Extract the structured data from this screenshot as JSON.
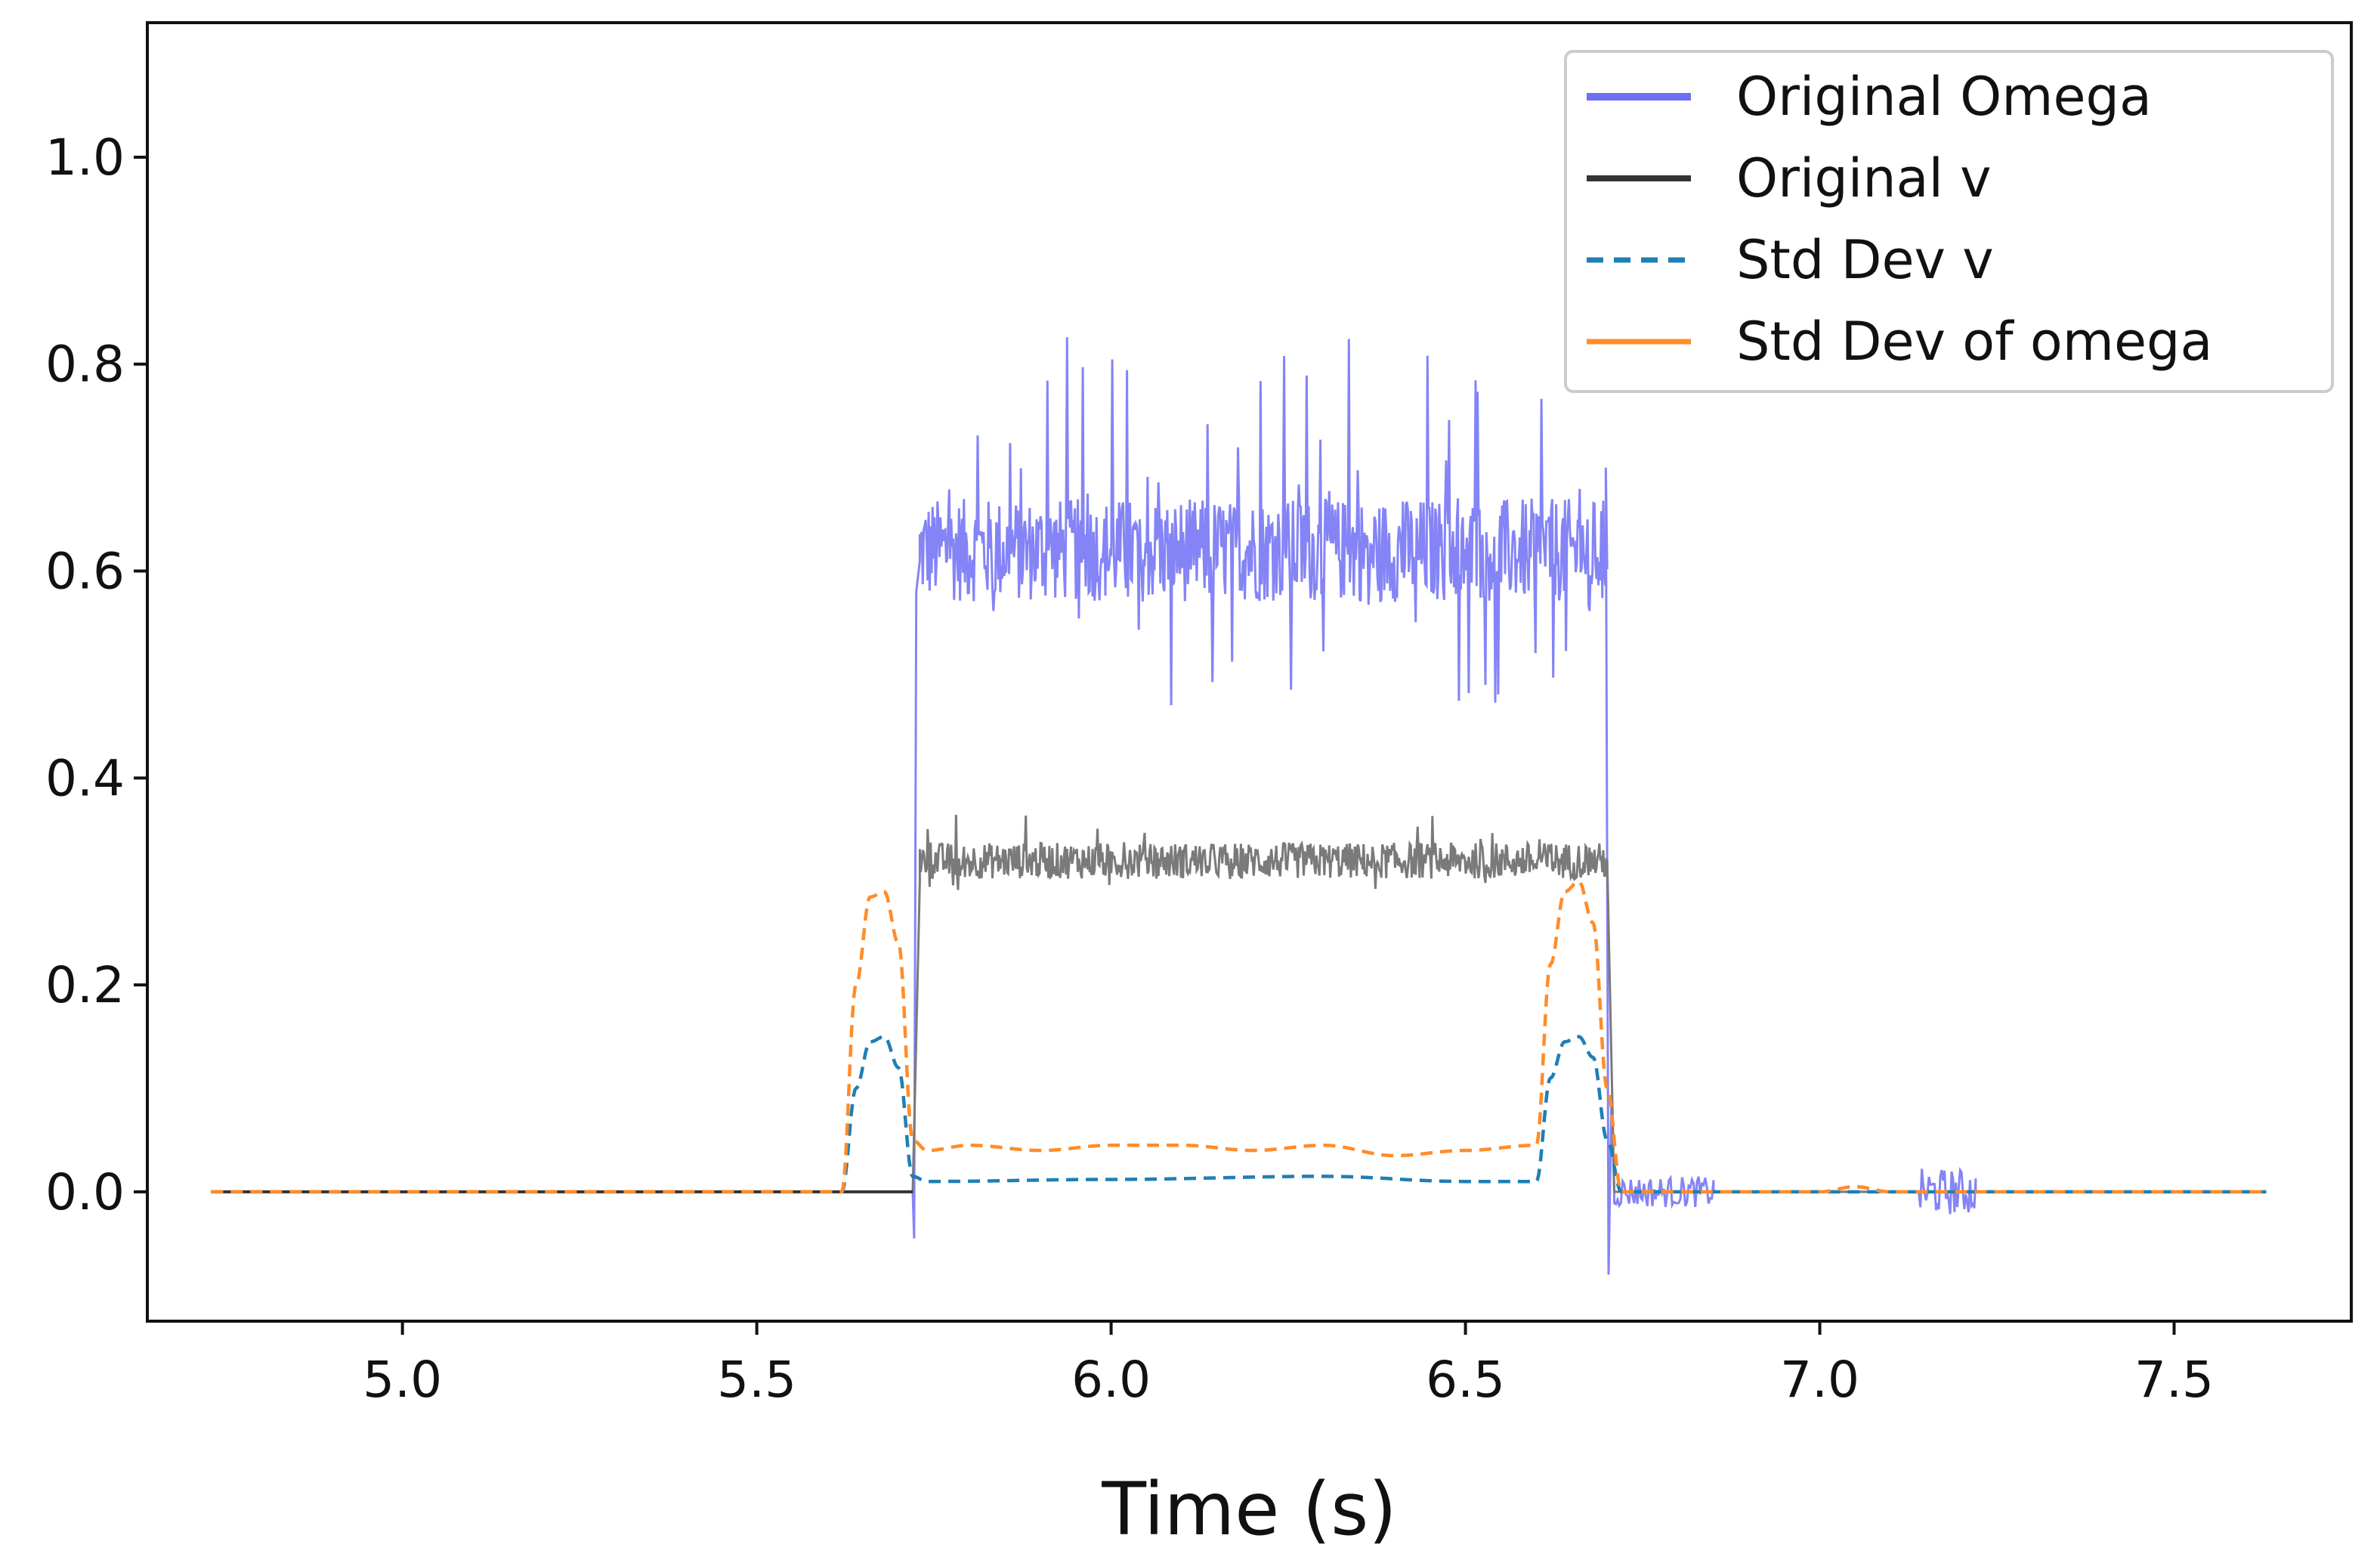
{
  "chart_data": {
    "type": "line",
    "title": "",
    "xlabel": "Time (s)",
    "ylabel": "",
    "xlim": [
      4.64,
      7.75
    ],
    "ylim": [
      -0.125,
      1.13
    ],
    "xticks": [
      5.0,
      5.5,
      6.0,
      6.5,
      7.0,
      7.5
    ],
    "xtick_labels": [
      "5.0",
      "5.5",
      "6.0",
      "6.5",
      "7.0",
      "7.5"
    ],
    "yticks": [
      0.0,
      0.2,
      0.4,
      0.6,
      0.8,
      1.0
    ],
    "ytick_labels": [
      "0.0",
      "0.2",
      "0.4",
      "0.6",
      "0.8",
      "1.0"
    ],
    "grid": false,
    "legend_position": "top-right",
    "colors": {
      "omega": "#6f6ff4",
      "v": "#333333",
      "v_noisy": "#7a7a7a",
      "std_v": "#1f7fb4",
      "std_omega": "#ff8c2a",
      "axis": "#111111"
    },
    "series": [
      {
        "name": "Original Omega",
        "style": "solid",
        "description_points": {
          "x": [
            4.73,
            5.72,
            5.725,
            5.73,
            5.75,
            6.69,
            6.7,
            6.705,
            6.72,
            6.85,
            7.15,
            7.22,
            7.63
          ],
          "y": [
            0.0,
            0.0,
            0.6,
            0.62,
            0.62,
            0.62,
            0.62,
            -0.08,
            0.0,
            0.0,
            0.0,
            0.0,
            0.0
          ]
        },
        "noisy_segment": {
          "x_start": 5.73,
          "x_end": 6.7,
          "mean": 0.62,
          "min": 0.47,
          "max": 0.83
        }
      },
      {
        "name": "Original v",
        "style": "solid",
        "description_points": {
          "x": [
            4.73,
            5.72,
            5.73,
            6.7,
            6.71,
            7.63
          ],
          "y": [
            0.0,
            0.0,
            0.32,
            0.32,
            0.0,
            0.0
          ]
        },
        "noisy_segment": {
          "x_start": 5.73,
          "x_end": 6.7,
          "mean": 0.32,
          "min": 0.29,
          "max": 0.37
        }
      },
      {
        "name": "Std Dev v",
        "style": "dashed",
        "x": [
          4.73,
          5.62,
          5.64,
          5.66,
          5.68,
          5.7,
          5.72,
          5.74,
          6.0,
          6.3,
          6.5,
          6.6,
          6.62,
          6.64,
          6.66,
          6.68,
          6.7,
          6.72,
          7.63
        ],
        "y": [
          0.0,
          0.0,
          0.1,
          0.145,
          0.15,
          0.12,
          0.015,
          0.01,
          0.012,
          0.015,
          0.01,
          0.01,
          0.11,
          0.145,
          0.15,
          0.13,
          0.05,
          0.0,
          0.0
        ]
      },
      {
        "name": "Std Dev of omega",
        "style": "dashed",
        "x": [
          4.73,
          5.62,
          5.64,
          5.66,
          5.68,
          5.7,
          5.72,
          5.74,
          5.8,
          5.9,
          6.0,
          6.1,
          6.2,
          6.3,
          6.4,
          6.5,
          6.6,
          6.62,
          6.64,
          6.66,
          6.68,
          6.7,
          6.72,
          7.0,
          7.05,
          7.1,
          7.63
        ],
        "y": [
          0.0,
          0.0,
          0.2,
          0.285,
          0.29,
          0.24,
          0.05,
          0.04,
          0.045,
          0.04,
          0.045,
          0.045,
          0.04,
          0.045,
          0.035,
          0.04,
          0.045,
          0.22,
          0.29,
          0.3,
          0.26,
          0.1,
          0.0,
          0.0,
          0.005,
          0.0,
          0.0
        ]
      }
    ],
    "legend": [
      "Original Omega",
      "Original v",
      "Std Dev v",
      "Std Dev of omega"
    ]
  }
}
